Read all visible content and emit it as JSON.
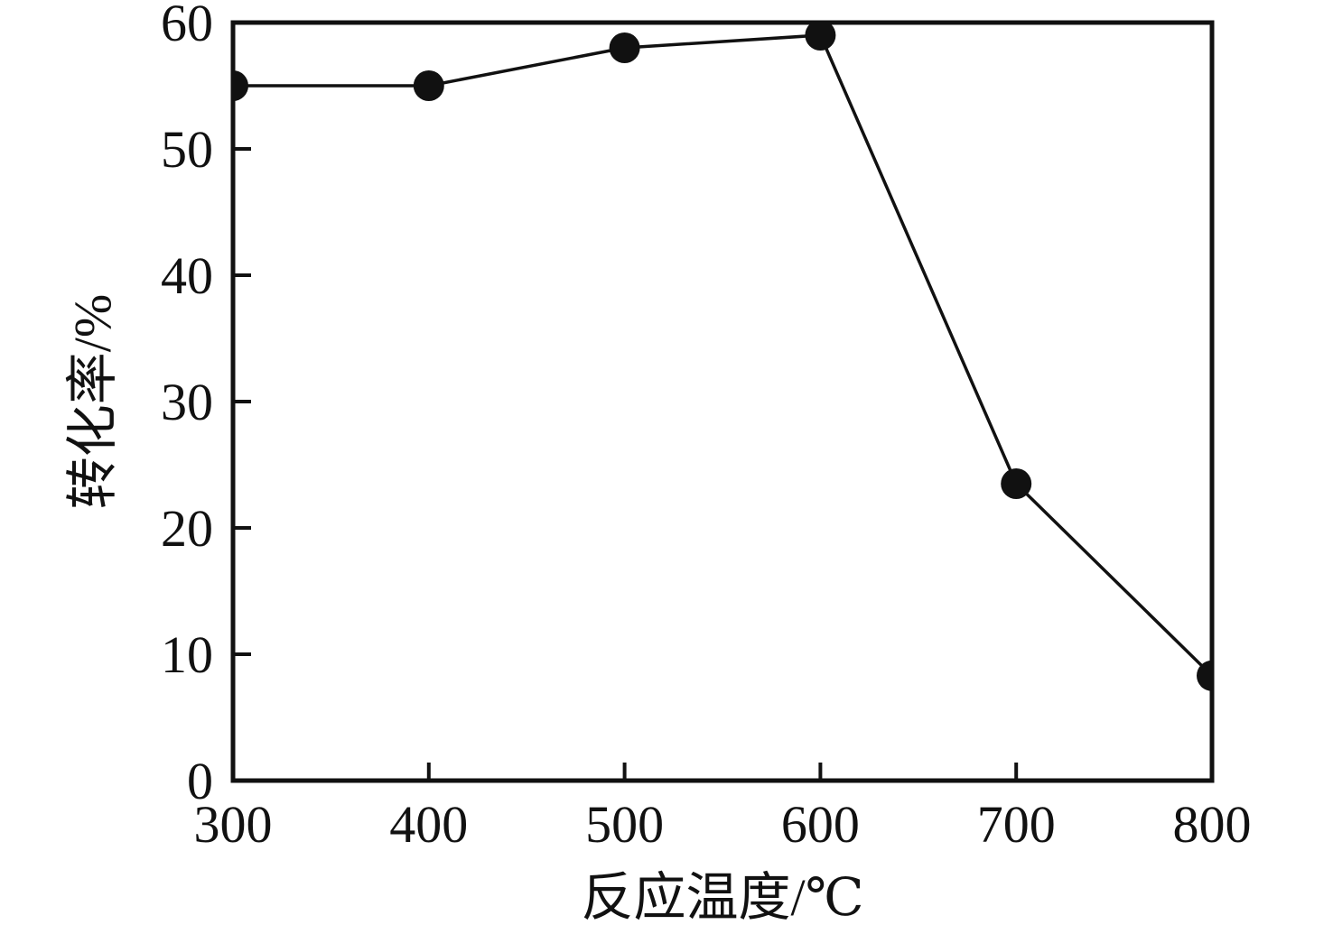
{
  "chart_data": {
    "type": "line",
    "title": "",
    "xlabel": "反应温度/℃",
    "ylabel": "转化率/%",
    "x": [
      300,
      400,
      500,
      600,
      700,
      800
    ],
    "values": [
      55,
      55,
      58,
      59,
      23.5,
      8.3
    ],
    "series_count": 1,
    "x_ticks": [
      300,
      400,
      500,
      600,
      700,
      800
    ],
    "y_ticks": [
      0,
      10,
      20,
      30,
      40,
      50,
      60
    ],
    "xlim": [
      300,
      800
    ],
    "ylim": [
      0,
      60
    ],
    "grid": false,
    "legend": false,
    "marker": "filled-circle",
    "marker_clipped_to_frame": true,
    "tick_direction": "in",
    "colors": {
      "ink": "#111111",
      "background": "#ffffff"
    }
  }
}
